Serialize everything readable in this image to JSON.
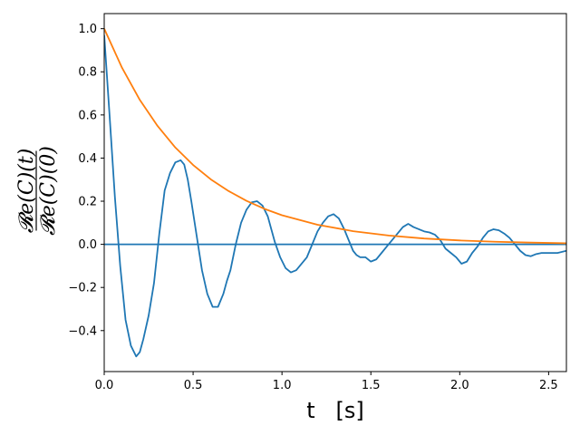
{
  "chart_data": {
    "type": "line",
    "title": "",
    "xlabel": "t   [s]",
    "ylabel_numerator": "𝓡e(C)(t)",
    "ylabel_denominator": "𝓡e(C)(0)",
    "xlim": [
      0.0,
      2.6
    ],
    "ylim": [
      -0.59,
      1.07
    ],
    "xticks": [
      0.0,
      0.5,
      1.0,
      1.5,
      2.0,
      2.5
    ],
    "xtick_labels": [
      "0.0",
      "0.5",
      "1.0",
      "1.5",
      "2.0",
      "2.5"
    ],
    "yticks": [
      -0.4,
      -0.2,
      0.0,
      0.2,
      0.4,
      0.6,
      0.8,
      1.0
    ],
    "ytick_labels": [
      "−0.4",
      "−0.2",
      "0.0",
      "0.2",
      "0.4",
      "0.6",
      "0.8",
      "1.0"
    ],
    "grid": false,
    "legend": "none",
    "series": [
      {
        "color": "#1f77b4",
        "x": [
          0.0,
          0.03,
          0.06,
          0.09,
          0.12,
          0.15,
          0.18,
          0.2,
          0.22,
          0.25,
          0.28,
          0.31,
          0.34,
          0.37,
          0.4,
          0.43,
          0.45,
          0.47,
          0.49,
          0.52,
          0.55,
          0.58,
          0.61,
          0.64,
          0.67,
          0.69,
          0.71,
          0.74,
          0.77,
          0.8,
          0.83,
          0.86,
          0.89,
          0.92,
          0.94,
          0.96,
          0.99,
          1.02,
          1.05,
          1.08,
          1.11,
          1.14,
          1.17,
          1.2,
          1.23,
          1.26,
          1.29,
          1.32,
          1.35,
          1.38,
          1.4,
          1.42,
          1.44,
          1.47,
          1.5,
          1.53,
          1.56,
          1.59,
          1.62,
          1.65,
          1.68,
          1.71,
          1.74,
          1.77,
          1.8,
          1.83,
          1.86,
          1.89,
          1.92,
          1.95,
          1.98,
          2.01,
          2.04,
          2.07,
          2.1,
          2.13,
          2.16,
          2.19,
          2.22,
          2.25,
          2.28,
          2.31,
          2.34,
          2.37,
          2.4,
          2.43,
          2.46,
          2.49,
          2.52,
          2.55,
          2.6
        ],
        "y": [
          0.97,
          0.6,
          0.22,
          -0.1,
          -0.35,
          -0.47,
          -0.52,
          -0.5,
          -0.44,
          -0.33,
          -0.18,
          0.05,
          0.25,
          0.33,
          0.38,
          0.39,
          0.37,
          0.3,
          0.2,
          0.04,
          -0.12,
          -0.23,
          -0.29,
          -0.29,
          -0.23,
          -0.17,
          -0.12,
          0.0,
          0.1,
          0.16,
          0.195,
          0.2,
          0.18,
          0.13,
          0.07,
          0.01,
          -0.06,
          -0.11,
          -0.13,
          -0.12,
          -0.09,
          -0.06,
          0.0,
          0.06,
          0.1,
          0.13,
          0.14,
          0.12,
          0.07,
          0.01,
          -0.03,
          -0.05,
          -0.06,
          -0.06,
          -0.08,
          -0.07,
          -0.04,
          -0.01,
          0.02,
          0.05,
          0.08,
          0.095,
          0.08,
          0.07,
          0.06,
          0.055,
          0.045,
          0.02,
          -0.02,
          -0.04,
          -0.06,
          -0.09,
          -0.08,
          -0.04,
          -0.01,
          0.03,
          0.06,
          0.07,
          0.065,
          0.05,
          0.03,
          0.0,
          -0.03,
          -0.05,
          -0.055,
          -0.045,
          -0.04,
          -0.04,
          -0.04,
          -0.04,
          -0.03
        ]
      },
      {
        "color": "#1f77b4",
        "x": [
          0.0,
          2.6
        ],
        "y": [
          0.0,
          0.0
        ]
      },
      {
        "color": "#ff7f0e",
        "function": "exp(-t/0.5)",
        "x": [
          0.0,
          0.1,
          0.2,
          0.3,
          0.4,
          0.5,
          0.6,
          0.7,
          0.8,
          0.9,
          1.0,
          1.2,
          1.4,
          1.6,
          1.8,
          2.0,
          2.2,
          2.4,
          2.6
        ],
        "y": [
          1.0,
          0.819,
          0.67,
          0.549,
          0.449,
          0.368,
          0.301,
          0.247,
          0.202,
          0.165,
          0.135,
          0.091,
          0.061,
          0.041,
          0.027,
          0.018,
          0.012,
          0.008,
          0.005
        ]
      }
    ]
  }
}
